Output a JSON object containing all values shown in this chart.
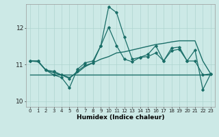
{
  "xlabel": "Humidex (Indice chaleur)",
  "x_ticks": [
    0,
    1,
    2,
    3,
    4,
    5,
    6,
    7,
    8,
    9,
    10,
    11,
    12,
    13,
    14,
    15,
    16,
    17,
    18,
    19,
    20,
    21,
    22,
    23
  ],
  "xlim": [
    -0.5,
    23.5
  ],
  "ylim": [
    9.85,
    12.65
  ],
  "y_ticks": [
    10,
    11,
    12
  ],
  "bg_color": "#cce9e6",
  "grid_color": "#aed4d0",
  "line_color": "#1a6e68",
  "line1_y": [
    11.1,
    11.1,
    10.85,
    10.72,
    10.65,
    10.37,
    10.87,
    11.05,
    11.1,
    11.52,
    12.58,
    12.42,
    11.75,
    11.15,
    11.2,
    11.22,
    11.32,
    11.1,
    11.38,
    11.42,
    11.1,
    11.1,
    10.72,
    10.75
  ],
  "line2_y": [
    11.1,
    11.1,
    10.85,
    10.82,
    10.72,
    10.62,
    10.82,
    10.98,
    11.05,
    11.52,
    12.02,
    11.52,
    11.15,
    11.08,
    11.2,
    11.28,
    11.52,
    11.1,
    11.45,
    11.48,
    11.1,
    11.4,
    10.32,
    10.75
  ],
  "line3_y": [
    11.1,
    11.08,
    10.85,
    10.78,
    10.72,
    10.65,
    10.78,
    10.95,
    11.05,
    11.15,
    11.22,
    11.32,
    11.35,
    11.4,
    11.45,
    11.5,
    11.55,
    11.58,
    11.62,
    11.65,
    11.65,
    11.65,
    11.1,
    10.75
  ],
  "line4_y": [
    10.72,
    10.72,
    10.72,
    10.72,
    10.72,
    10.72,
    10.72,
    10.72,
    10.72,
    10.72,
    10.72,
    10.72,
    10.72,
    10.72,
    10.72,
    10.72,
    10.72,
    10.72,
    10.72,
    10.72,
    10.72,
    10.72,
    10.72,
    10.72
  ]
}
